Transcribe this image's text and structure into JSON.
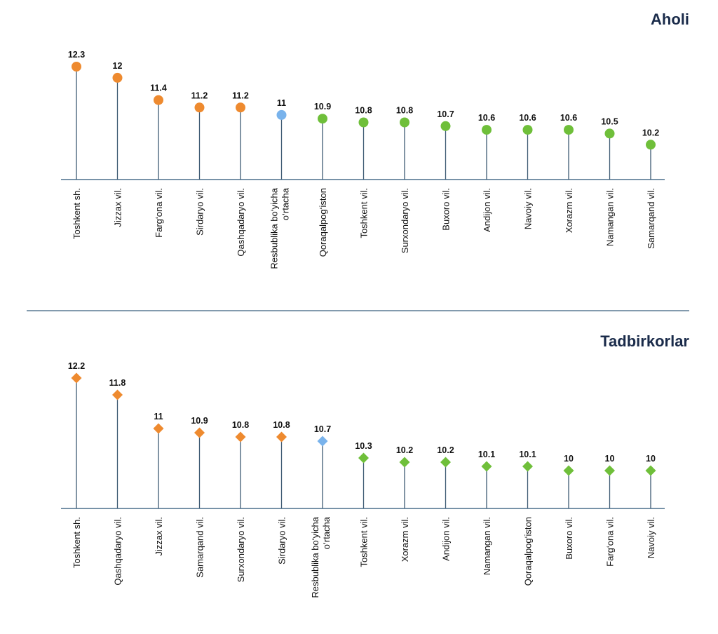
{
  "colors": {
    "above": "#ee8a2f",
    "average": "#79b3ec",
    "below": "#6fbf3a",
    "stem": "#3d5a73",
    "axis": "#4a6f8c",
    "divider": "#5a7a94",
    "title": "#1a2b4a"
  },
  "chart_data": [
    {
      "type": "lollipop",
      "title": "Aholi",
      "marker": "circle",
      "categories": [
        "Toshkent sh.",
        "Jizzax vil.",
        "Farg‘ona vil.",
        "Sirdaryo vil.",
        "Qashqadaryo vil.",
        "Resbublika bo‘yicha o‘rtacha",
        "Qoraqalpog‘iston",
        "Toshkent vil.",
        "Surxondaryo vil.",
        "Buxoro vil.",
        "Andijon vil.",
        "Navoiy vil.",
        "Xorazm vil.",
        "Namangan vil.",
        "Samarqand vil."
      ],
      "values": [
        12.3,
        12,
        11.4,
        11.2,
        11.2,
        11,
        10.9,
        10.8,
        10.8,
        10.7,
        10.6,
        10.6,
        10.6,
        10.5,
        10.2
      ],
      "value_labels": [
        "12.3",
        "12",
        "11.4",
        "11.2",
        "11.2",
        "11",
        "10.9",
        "10.8",
        "10.8",
        "10.7",
        "10.6",
        "10.6",
        "10.6",
        "10.5",
        "10.2"
      ],
      "groups": [
        "above",
        "above",
        "above",
        "above",
        "above",
        "average",
        "below",
        "below",
        "below",
        "below",
        "below",
        "below",
        "below",
        "below",
        "below"
      ]
    },
    {
      "type": "lollipop",
      "title": "Tadbirkorlar",
      "marker": "diamond",
      "categories": [
        "Toshkent sh.",
        "Qashqadaryo vil.",
        "Jizzax vil.",
        "Samarqand vil.",
        "Surxondaryo vil.",
        "Sirdaryo vil.",
        "Resbublika bo‘yicha o‘rtacha",
        "Toshkent vil.",
        "Xorazm vil.",
        "Andijon vil.",
        "Namangan vil.",
        "Qoraqalpog‘iston",
        "Buxoro vil.",
        "Farg‘ona vil.",
        "Navoiy vil."
      ],
      "values": [
        12.2,
        11.8,
        11,
        10.9,
        10.8,
        10.8,
        10.7,
        10.3,
        10.2,
        10.2,
        10.1,
        10.1,
        10,
        10,
        10
      ],
      "value_labels": [
        "12.2",
        "11.8",
        "11",
        "10.9",
        "10.8",
        "10.8",
        "10.7",
        "10.3",
        "10.2",
        "10.2",
        "10.1",
        "10.1",
        "10",
        "10",
        "10"
      ],
      "groups": [
        "above",
        "above",
        "above",
        "above",
        "above",
        "above",
        "average",
        "below",
        "below",
        "below",
        "below",
        "below",
        "below",
        "below",
        "below"
      ]
    }
  ]
}
